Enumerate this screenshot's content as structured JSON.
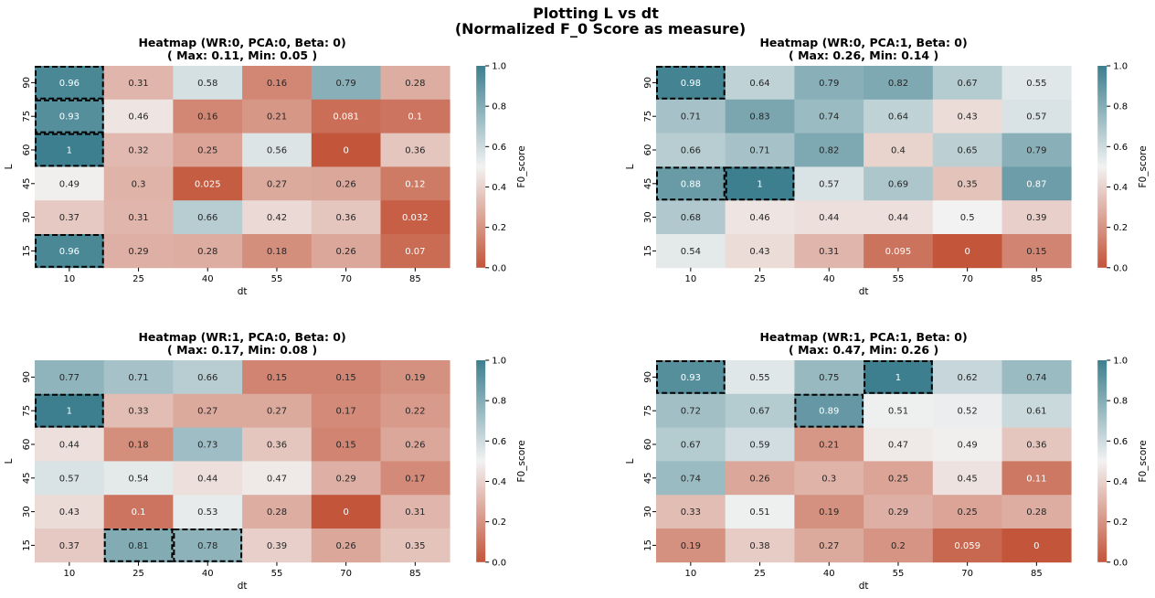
{
  "figure": {
    "title_line1": "Plotting L vs dt",
    "title_line2": "(Normalized F_0 Score as measure)"
  },
  "chart_data": [
    {
      "type": "heatmap",
      "title_line1": "Heatmap (WR:0, PCA:0, Beta: 0)",
      "title_line2": "( Max: 0.11, Min: 0.05 )",
      "xlabel": "dt",
      "ylabel": "L",
      "x": [
        "10",
        "25",
        "40",
        "55",
        "70",
        "85"
      ],
      "y": [
        "90",
        "75",
        "60",
        "45",
        "30",
        "15"
      ],
      "values": [
        [
          "0.96",
          "0.31",
          "0.58",
          "0.16",
          "0.79",
          "0.28"
        ],
        [
          "0.93",
          "0.46",
          "0.16",
          "0.21",
          "0.081",
          "0.1"
        ],
        [
          "1",
          "0.32",
          "0.25",
          "0.56",
          "0",
          "0.36"
        ],
        [
          "0.49",
          "0.3",
          "0.025",
          "0.27",
          "0.26",
          "0.12"
        ],
        [
          "0.37",
          "0.31",
          "0.66",
          "0.42",
          "0.36",
          "0.032"
        ],
        [
          "0.96",
          "0.29",
          "0.28",
          "0.18",
          "0.26",
          "0.07"
        ]
      ],
      "highlighted": [
        [
          0,
          0
        ],
        [
          1,
          0
        ],
        [
          2,
          0
        ],
        [
          5,
          0
        ]
      ],
      "colorbar": {
        "label": "F0_score",
        "ticks": [
          "0.0",
          "0.2",
          "0.4",
          "0.6",
          "0.8",
          "1.0"
        ],
        "range": [
          0,
          1
        ]
      }
    },
    {
      "type": "heatmap",
      "title_line1": "Heatmap (WR:0, PCA:1, Beta: 0)",
      "title_line2": "( Max: 0.26, Min: 0.14 )",
      "xlabel": "dt",
      "ylabel": "L",
      "x": [
        "10",
        "25",
        "40",
        "55",
        "70",
        "85"
      ],
      "y": [
        "90",
        "75",
        "60",
        "45",
        "30",
        "15"
      ],
      "values": [
        [
          "0.98",
          "0.64",
          "0.79",
          "0.82",
          "0.67",
          "0.55"
        ],
        [
          "0.71",
          "0.83",
          "0.74",
          "0.64",
          "0.43",
          "0.57"
        ],
        [
          "0.66",
          "0.71",
          "0.82",
          "0.4",
          "0.65",
          "0.79"
        ],
        [
          "0.88",
          "1",
          "0.57",
          "0.69",
          "0.35",
          "0.87"
        ],
        [
          "0.68",
          "0.46",
          "0.44",
          "0.44",
          "0.5",
          "0.39"
        ],
        [
          "0.54",
          "0.43",
          "0.31",
          "0.095",
          "0",
          "0.15"
        ]
      ],
      "highlighted": [
        [
          0,
          0
        ],
        [
          3,
          0
        ],
        [
          3,
          1
        ]
      ],
      "colorbar": {
        "label": "F0_score",
        "ticks": [
          "0.0",
          "0.2",
          "0.4",
          "0.6",
          "0.8",
          "1.0"
        ],
        "range": [
          0,
          1
        ]
      }
    },
    {
      "type": "heatmap",
      "title_line1": "Heatmap (WR:1, PCA:0, Beta: 0)",
      "title_line2": "( Max: 0.17, Min: 0.08 )",
      "xlabel": "dt",
      "ylabel": "L",
      "x": [
        "10",
        "25",
        "40",
        "55",
        "70",
        "85"
      ],
      "y": [
        "90",
        "75",
        "60",
        "45",
        "30",
        "15"
      ],
      "values": [
        [
          "0.77",
          "0.71",
          "0.66",
          "0.15",
          "0.15",
          "0.19"
        ],
        [
          "1",
          "0.33",
          "0.27",
          "0.27",
          "0.17",
          "0.22"
        ],
        [
          "0.44",
          "0.18",
          "0.73",
          "0.36",
          "0.15",
          "0.26"
        ],
        [
          "0.57",
          "0.54",
          "0.44",
          "0.47",
          "0.29",
          "0.17"
        ],
        [
          "0.43",
          "0.1",
          "0.53",
          "0.28",
          "0",
          "0.31"
        ],
        [
          "0.37",
          "0.81",
          "0.78",
          "0.39",
          "0.26",
          "0.35"
        ]
      ],
      "highlighted": [
        [
          1,
          0
        ],
        [
          5,
          1
        ],
        [
          5,
          2
        ]
      ],
      "colorbar": {
        "label": "F0_score",
        "ticks": [
          "0.0",
          "0.2",
          "0.4",
          "0.6",
          "0.8",
          "1.0"
        ],
        "range": [
          0,
          1
        ]
      }
    },
    {
      "type": "heatmap",
      "title_line1": "Heatmap (WR:1, PCA:1, Beta: 0)",
      "title_line2": "( Max: 0.47, Min: 0.26 )",
      "xlabel": "dt",
      "ylabel": "L",
      "x": [
        "10",
        "25",
        "40",
        "55",
        "70",
        "85"
      ],
      "y": [
        "90",
        "75",
        "60",
        "45",
        "30",
        "15"
      ],
      "values": [
        [
          "0.93",
          "0.55",
          "0.75",
          "1",
          "0.62",
          "0.74"
        ],
        [
          "0.72",
          "0.67",
          "0.89",
          "0.51",
          "0.52",
          "0.61"
        ],
        [
          "0.67",
          "0.59",
          "0.21",
          "0.47",
          "0.49",
          "0.36"
        ],
        [
          "0.74",
          "0.26",
          "0.3",
          "0.25",
          "0.45",
          "0.11"
        ],
        [
          "0.33",
          "0.51",
          "0.19",
          "0.29",
          "0.25",
          "0.28"
        ],
        [
          "0.19",
          "0.38",
          "0.27",
          "0.2",
          "0.059",
          "0"
        ]
      ],
      "highlighted": [
        [
          0,
          0
        ],
        [
          0,
          3
        ],
        [
          1,
          2
        ]
      ],
      "colorbar": {
        "label": "F0_score",
        "ticks": [
          "0.0",
          "0.2",
          "0.4",
          "0.6",
          "0.8",
          "1.0"
        ],
        "range": [
          0,
          1
        ]
      }
    }
  ],
  "colors": {
    "low": "#c3553a",
    "mid": "#f2f2f2",
    "high": "#3d7f8e"
  }
}
